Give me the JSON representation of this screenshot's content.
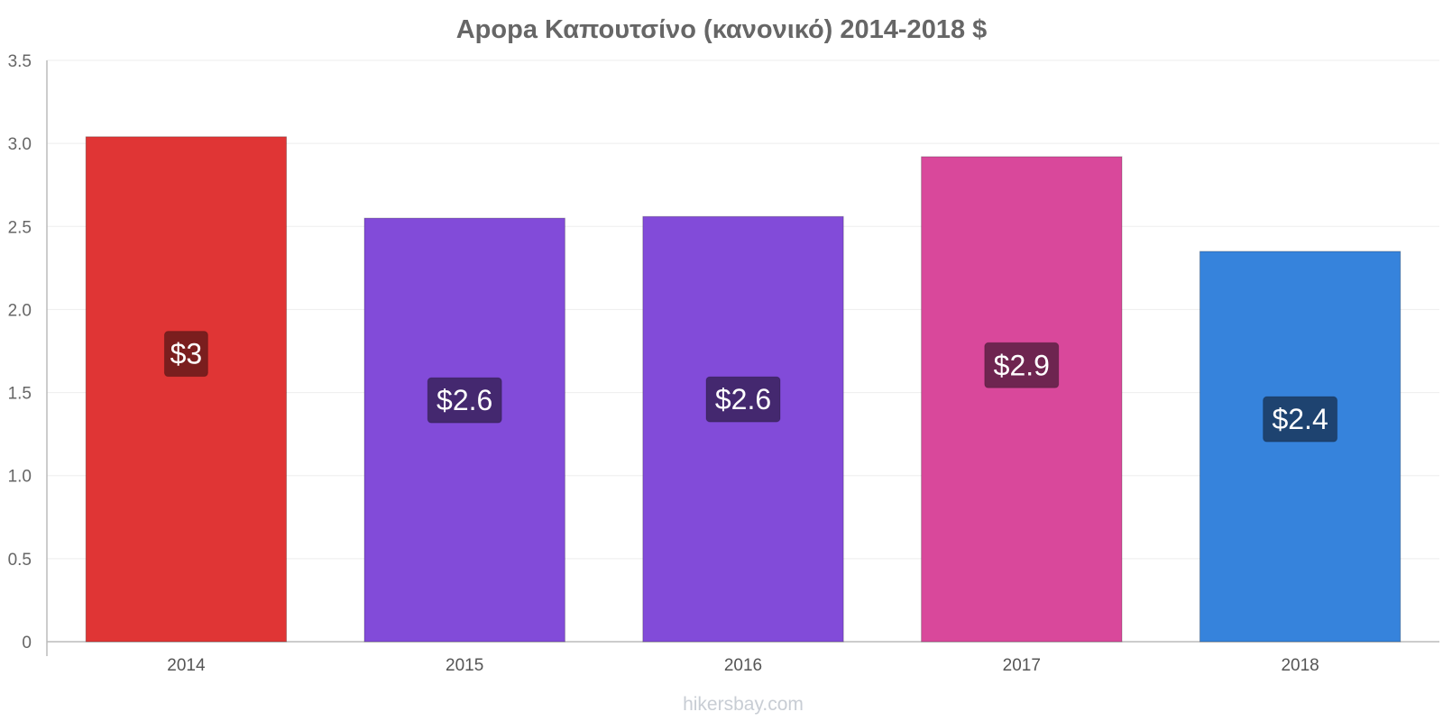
{
  "title": "Apopa Καπουτσίνο (κανονικό) 2014-2018 $",
  "watermark": "hikersbay.com",
  "chart_data": {
    "type": "bar",
    "title": "Apopa Καπουτσίνο (κανονικό) 2014-2018 $",
    "xlabel": "",
    "ylabel": "",
    "categories": [
      "2014",
      "2015",
      "2016",
      "2017",
      "2018"
    ],
    "values": [
      3.04,
      2.55,
      2.56,
      2.92,
      2.35
    ],
    "data_labels": [
      "$3",
      "$2.6",
      "$2.6",
      "$2.9",
      "$2.4"
    ],
    "bar_colors": [
      "#e03535",
      "#824bd9",
      "#824bd9",
      "#d9489b",
      "#3683dc"
    ],
    "label_box_colors": [
      "#7a1e1e",
      "#44286f",
      "#44286f",
      "#6e2550",
      "#1e4370"
    ],
    "ylim": [
      0,
      3.5
    ],
    "yticks": [
      0,
      0.5,
      1.0,
      1.5,
      2.0,
      2.5,
      3.0,
      3.5
    ],
    "ytick_labels": [
      "0",
      "0.5",
      "1.0",
      "1.5",
      "2.0",
      "2.5",
      "3.0",
      "3.5"
    ],
    "grid": true,
    "legend": "none"
  }
}
